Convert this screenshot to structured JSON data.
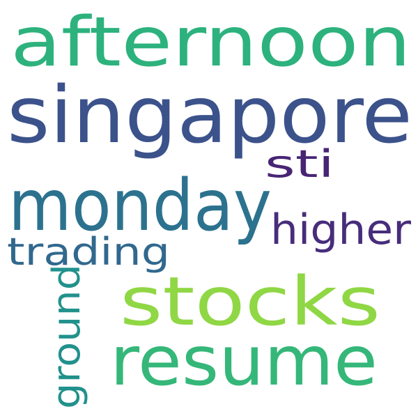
{
  "words": [
    {
      "text": "afternoon",
      "color": "#2db27d"
    },
    {
      "text": "singapore",
      "color": "#3b528b"
    },
    {
      "text": "monday",
      "color": "#2c728e"
    },
    {
      "text": "stocks",
      "color": "#8fd744"
    },
    {
      "text": "resume",
      "color": "#35b779"
    },
    {
      "text": "higher",
      "color": "#472d7b"
    },
    {
      "text": "sti",
      "color": "#482475"
    },
    {
      "text": "trading",
      "color": "#31688e"
    },
    {
      "text": "ground",
      "color": "#21918c"
    }
  ]
}
